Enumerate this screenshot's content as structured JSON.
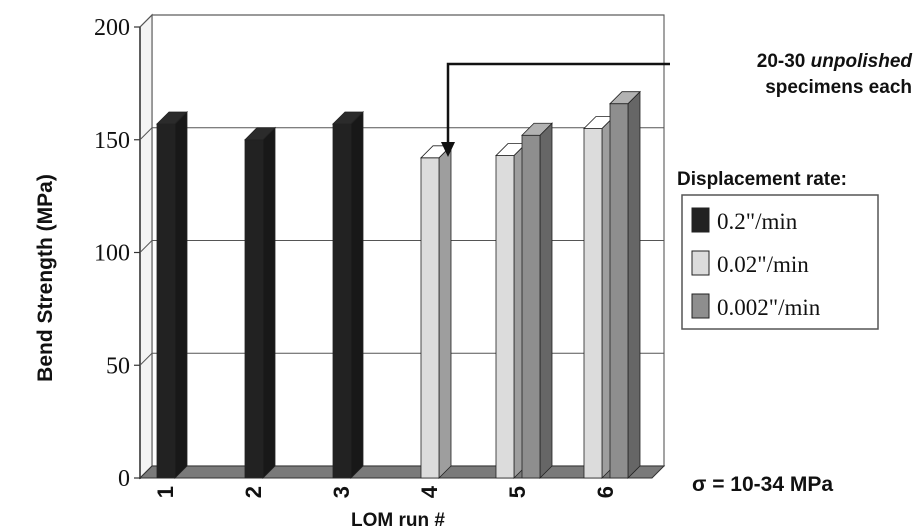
{
  "chart_data": {
    "type": "bar",
    "title": "",
    "xlabel": "LOM run #",
    "ylabel": "Bend Strength (MPa)",
    "ylim": [
      0,
      200
    ],
    "yticks": [
      0,
      50,
      100,
      150,
      200
    ],
    "grid": true,
    "categories": [
      "1",
      "2",
      "3",
      "4",
      "5",
      "6"
    ],
    "legend": {
      "title": "Displacement rate:",
      "placement": "right"
    },
    "series": [
      {
        "name": "0.2\"/min",
        "color": "#222222",
        "values": [
          157,
          150,
          157,
          null,
          null,
          null
        ]
      },
      {
        "name": "0.02\"/min",
        "color": "#dcdcdc",
        "values": [
          null,
          null,
          null,
          142,
          143,
          155
        ]
      },
      {
        "name": "0.002\"/min",
        "color": "#8e8e8e",
        "values": [
          null,
          null,
          null,
          null,
          152,
          166
        ]
      }
    ],
    "annotations": {
      "callout_number": "20-30",
      "callout_emphasis": "unpolished",
      "callout_line2": "specimens each",
      "callout_target": "4",
      "sigma": "σ = 10-34 MPa"
    }
  }
}
